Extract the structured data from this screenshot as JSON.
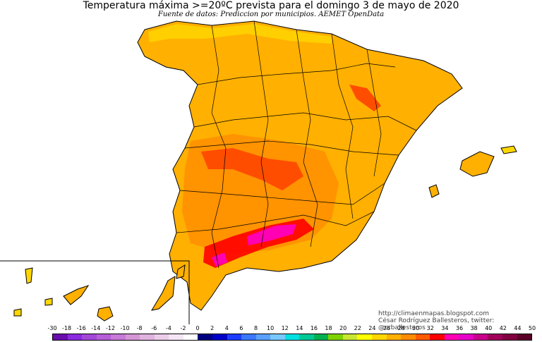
{
  "title": "Temperatura máxima >=20ºC prevista para el domingo 3 de mayo de 2020",
  "subtitle": "Fuente de datos: Prediccion por municipios. AEMET OpenData",
  "credit": {
    "blog": "http://climaenmapas.blogspot.com",
    "author": "César Rodríguez Ballesteros, twitter: @crballesteros"
  },
  "legend": {
    "ticks": [
      "-30",
      "-18",
      "-16",
      "-14",
      "-12",
      "-10",
      "-8",
      "-6",
      "-4",
      "-2",
      "0",
      "2",
      "4",
      "6",
      "8",
      "10",
      "12",
      "14",
      "16",
      "18",
      "20",
      "22",
      "24",
      "26",
      "28",
      "30",
      "32",
      "34",
      "36",
      "38",
      "40",
      "42",
      "44",
      "50"
    ],
    "colors": [
      "#6a0dad",
      "#8a2be2",
      "#a347d8",
      "#b65fd6",
      "#c77ad8",
      "#d596d6",
      "#e0b3e0",
      "#ebcdea",
      "#f4e6f4",
      "#ffffff",
      "#000080",
      "#0000c8",
      "#1e3cff",
      "#3c78ff",
      "#5aa0ff",
      "#78c8ff",
      "#00e0e0",
      "#00c896",
      "#00b050",
      "#7fd200",
      "#c8e632",
      "#ffff00",
      "#ffd700",
      "#ffb000",
      "#ff8c00",
      "#ff5a00",
      "#ff0000",
      "#ff00b4",
      "#e600c8",
      "#c8008c",
      "#a0005a",
      "#800040",
      "#5a0028"
    ]
  }
}
